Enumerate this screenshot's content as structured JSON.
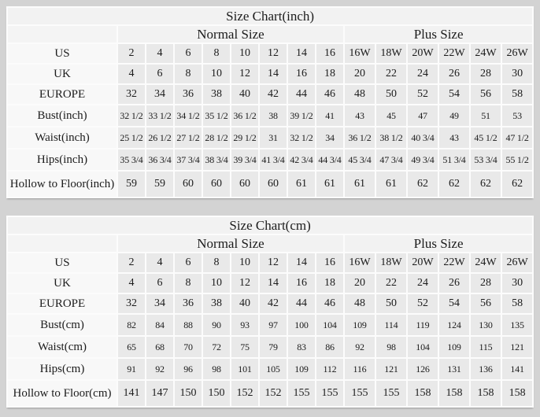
{
  "colors": {
    "page_background": "#d3d3d3",
    "gridline": "#fcfcfc",
    "header_cell": "#f2f2f2",
    "label_cell": "#f8f8f8",
    "data_cell": "#e9e9e9",
    "text": "#1c1c1c"
  },
  "chart_data": [
    {
      "type": "table",
      "title": "Size Chart(inch)",
      "column_groups": [
        {
          "label": "Normal Size",
          "span": 8
        },
        {
          "label": "Plus Size",
          "span": 6
        }
      ],
      "rows": [
        {
          "label": "US",
          "values": [
            "2",
            "4",
            "6",
            "8",
            "10",
            "12",
            "14",
            "16",
            "16W",
            "18W",
            "20W",
            "22W",
            "24W",
            "26W"
          ]
        },
        {
          "label": "UK",
          "values": [
            "4",
            "6",
            "8",
            "10",
            "12",
            "14",
            "16",
            "18",
            "20",
            "22",
            "24",
            "26",
            "28",
            "30"
          ]
        },
        {
          "label": "EUROPE",
          "values": [
            "32",
            "34",
            "36",
            "38",
            "40",
            "42",
            "44",
            "46",
            "48",
            "50",
            "52",
            "54",
            "56",
            "58"
          ]
        },
        {
          "label": "Bust(inch)",
          "values": [
            "32 1/2",
            "33 1/2",
            "34 1/2",
            "35 1/2",
            "36 1/2",
            "38",
            "39 1/2",
            "41",
            "43",
            "45",
            "47",
            "49",
            "51",
            "53"
          ]
        },
        {
          "label": "Waist(inch)",
          "values": [
            "25 1/2",
            "26 1/2",
            "27 1/2",
            "28 1/2",
            "29 1/2",
            "31",
            "32 1/2",
            "34",
            "36 1/2",
            "38 1/2",
            "40 3/4",
            "43",
            "45 1/2",
            "47 1/2"
          ]
        },
        {
          "label": "Hips(inch)",
          "values": [
            "35 3/4",
            "36 3/4",
            "37 3/4",
            "38 3/4",
            "39 3/4",
            "41 3/4",
            "42 3/4",
            "44 3/4",
            "45 3/4",
            "47 3/4",
            "49 3/4",
            "51 3/4",
            "53 3/4",
            "55 1/2"
          ]
        },
        {
          "label": "Hollow to Floor(inch)",
          "values": [
            "59",
            "59",
            "60",
            "60",
            "60",
            "60",
            "61",
            "61",
            "61",
            "61",
            "62",
            "62",
            "62",
            "62"
          ]
        }
      ]
    },
    {
      "type": "table",
      "title": "Size Chart(cm)",
      "column_groups": [
        {
          "label": "Normal Size",
          "span": 8
        },
        {
          "label": "Plus Size",
          "span": 6
        }
      ],
      "rows": [
        {
          "label": "US",
          "values": [
            "2",
            "4",
            "6",
            "8",
            "10",
            "12",
            "14",
            "16",
            "16W",
            "18W",
            "20W",
            "22W",
            "24W",
            "26W"
          ]
        },
        {
          "label": "UK",
          "values": [
            "4",
            "6",
            "8",
            "10",
            "12",
            "14",
            "16",
            "18",
            "20",
            "22",
            "24",
            "26",
            "28",
            "30"
          ]
        },
        {
          "label": "EUROPE",
          "values": [
            "32",
            "34",
            "36",
            "38",
            "40",
            "42",
            "44",
            "46",
            "48",
            "50",
            "52",
            "54",
            "56",
            "58"
          ]
        },
        {
          "label": "Bust(cm)",
          "values": [
            "82",
            "84",
            "88",
            "90",
            "93",
            "97",
            "100",
            "104",
            "109",
            "114",
            "119",
            "124",
            "130",
            "135"
          ]
        },
        {
          "label": "Waist(cm)",
          "values": [
            "65",
            "68",
            "70",
            "72",
            "75",
            "79",
            "83",
            "86",
            "92",
            "98",
            "104",
            "109",
            "115",
            "121"
          ]
        },
        {
          "label": "Hips(cm)",
          "values": [
            "91",
            "92",
            "96",
            "98",
            "101",
            "105",
            "109",
            "112",
            "116",
            "121",
            "126",
            "131",
            "136",
            "141"
          ]
        },
        {
          "label": "Hollow to Floor(cm)",
          "values": [
            "141",
            "147",
            "150",
            "150",
            "152",
            "152",
            "155",
            "155",
            "155",
            "155",
            "158",
            "158",
            "158",
            "158"
          ]
        }
      ]
    }
  ]
}
